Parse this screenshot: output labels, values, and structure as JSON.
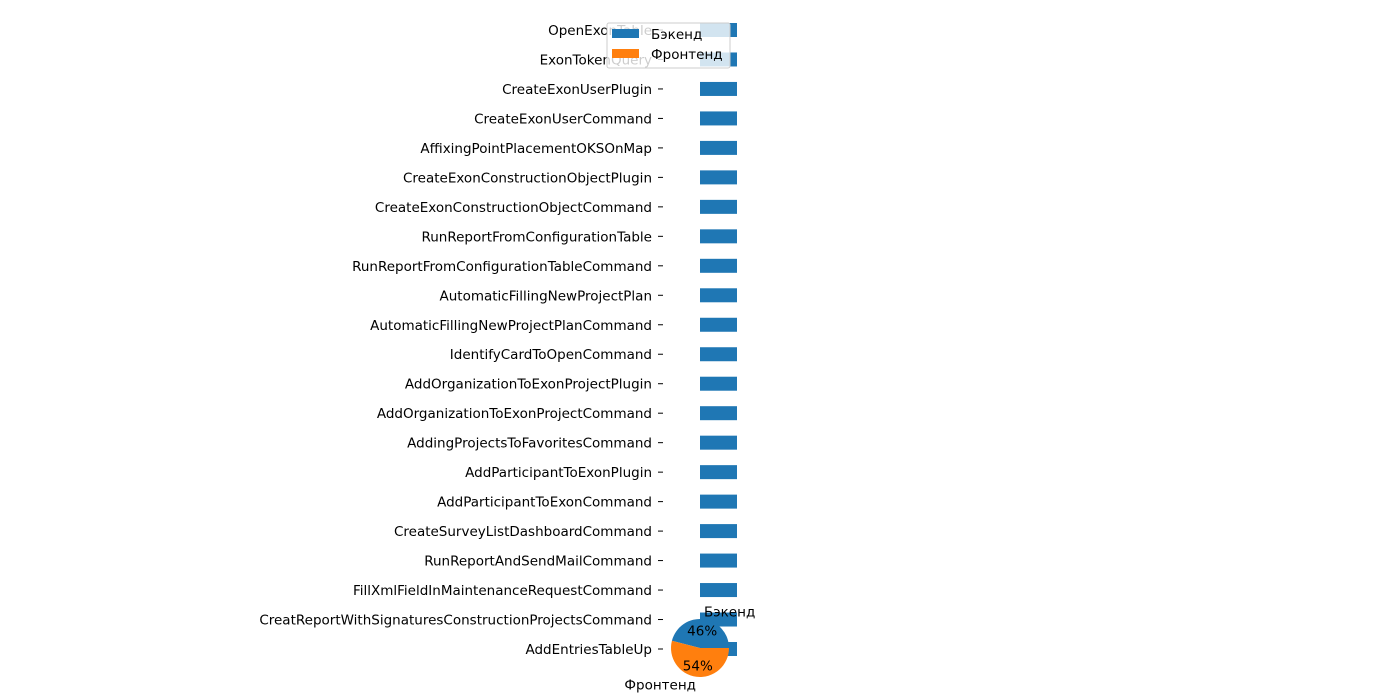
{
  "chart_data": [
    {
      "type": "bar",
      "orientation": "horizontal",
      "categories": [
        "OpenExonTable",
        "ExonTokenQuery",
        "CreateExonUserPlugin",
        "CreateExonUserCommand",
        "AffixingPointPlacementOKSOnMap",
        "CreateExonConstructionObjectPlugin",
        "CreateExonConstructionObjectCommand",
        "RunReportFromConfigurationTable",
        "RunReportFromConfigurationTableCommand",
        "AutomaticFillingNewProjectPlan",
        "AutomaticFillingNewProjectPlanCommand",
        "IdentifyCardToOpenCommand",
        "AddOrganizationToExonProjectPlugin",
        "AddOrganizationToExonProjectCommand",
        "AddingProjectsToFavoritesCommand",
        "AddParticipantToExonPlugin",
        "AddParticipantToExonCommand",
        "CreateSurveyListDashboardCommand",
        "RunReportAndSendMailCommand",
        "FillXmlFieldInMaintenanceRequestCommand",
        "CreatReportWithSignaturesConstructionProjectsCommand",
        "AddEntriesTableUp"
      ],
      "series": [
        {
          "name": "Бэкенд",
          "color": "#1f77b4",
          "values": [
            1,
            1,
            1,
            1,
            1,
            1,
            1,
            1,
            1,
            1,
            1,
            1,
            1,
            1,
            1,
            1,
            1,
            1,
            1,
            1,
            1,
            1
          ]
        },
        {
          "name": "Фронтенд",
          "color": "#ff7f0e",
          "values": [
            0,
            0,
            0,
            0,
            0,
            0,
            0,
            0,
            0,
            0,
            0,
            0,
            0,
            0,
            0,
            0,
            0,
            0,
            0,
            0,
            0,
            0
          ]
        }
      ],
      "xlim": [
        0,
        1
      ],
      "legend": {
        "placement": "top-left",
        "entries": [
          "Бэкенд",
          "Фронтенд"
        ]
      }
    },
    {
      "type": "pie",
      "slices": [
        {
          "label": "Бэкенд",
          "value": 46,
          "pct_label": "46%",
          "color": "#1f77b4"
        },
        {
          "label": "Фронтенд",
          "value": 54,
          "pct_label": "54%",
          "color": "#ff7f0e"
        }
      ]
    }
  ]
}
